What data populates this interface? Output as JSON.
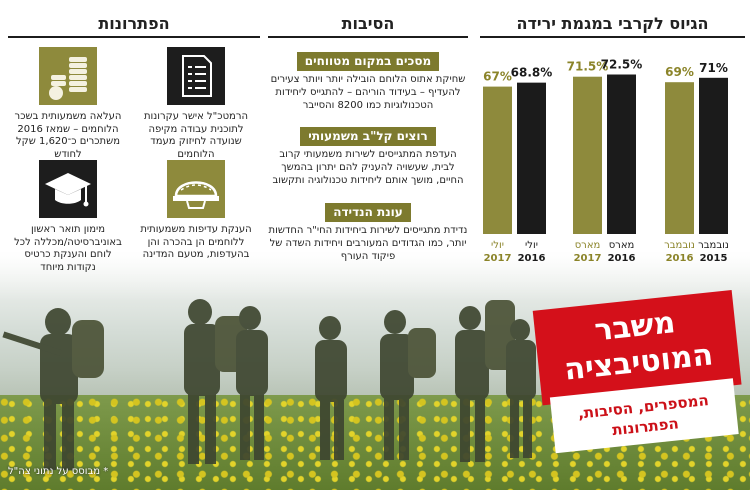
{
  "colors": {
    "olive": "#8e8a3c",
    "dark": "#1b1b1b",
    "label_olive": "#8b8429",
    "red": "#d4101a",
    "reason_header_bg": "#7d7a2e"
  },
  "chart_section": {
    "title": "הגיוס לקרבי במגמת ירידה"
  },
  "chart_data": {
    "type": "bar",
    "title": "הגיוס לקרבי במגמת ירידה",
    "unit": "%",
    "groups": [
      {
        "bars": [
          {
            "label": "נובמבר",
            "year": "2015",
            "value": 71,
            "display": "71%",
            "color": "dark"
          },
          {
            "label": "נובמבר",
            "year": "2016",
            "value": 69,
            "display": "69%",
            "color": "olive"
          }
        ]
      },
      {
        "bars": [
          {
            "label": "מארס",
            "year": "2016",
            "value": 72.5,
            "display": "72.5%",
            "color": "dark"
          },
          {
            "label": "מארס",
            "year": "2017",
            "value": 71.5,
            "display": "71.5%",
            "color": "olive"
          }
        ]
      },
      {
        "bars": [
          {
            "label": "יולי",
            "year": "2016",
            "value": 68.8,
            "display": "68.8%",
            "color": "dark"
          },
          {
            "label": "יולי",
            "year": "2017",
            "value": 67,
            "display": "67%",
            "color": "olive"
          }
        ]
      }
    ]
  },
  "reasons_section": {
    "title": "הסיבות",
    "items": [
      {
        "header": "מסכים במקום מטווחים",
        "text": "שחיקת אתוס הלוחם הובילה יותר ויותר צעירים להעדיף – בעידוד הוריהם – להתגייס ליחידות הטכנולוגיות כמו 8200 והסייבר"
      },
      {
        "header": "רוצים קל\"ב משמעותי",
        "text": "העדפת המתגייסים לשירות משמעותי קרוב לבית, שעשויה להעניק להם יתרון בהמשך החיים, מושך אותם ליחידות טכנולוגיה ותקשוב"
      },
      {
        "header": "עונת הנדידה",
        "text": "נדידת מתגייסים לשירות ביחידות החי\"ר החדשות יותר, כמו הגדודים המעורבים ויחידות השדה של פיקוד העורף"
      }
    ]
  },
  "solutions_section": {
    "title": "הפתרונות",
    "items": [
      {
        "icon": "coins-stack-icon",
        "text": "העלאה משמעותית בשכר הלוחמים – שמאז 2016 משתכרים כ־1,620 שקל לחודש"
      },
      {
        "icon": "document-icon",
        "text": "הרמטכ\"ל אישר עקרונות לתוכנית עבודה מקיפה שנועדה לחיזוק מעמד הלוחמים"
      },
      {
        "icon": "graduation-cap-icon",
        "text": "מימון תואר ראשון באוניברסיטה/מכללה לכל לוחם והענקת כרטיס נקודות מיוחד"
      },
      {
        "icon": "helmet-icon",
        "text": "הענקת עדיפות משמעותית ללוחמים הן בהכרה והן בהעדפות, מטעם המדינה"
      }
    ]
  },
  "headline": {
    "title_line1": "משבר",
    "title_line2": "המוטיבציה",
    "subtitle_line1": "המספרים, הסיבות,",
    "subtitle_line2": "הפתרונות"
  },
  "credit": "* מבוסס על נתוני צה\"ל"
}
